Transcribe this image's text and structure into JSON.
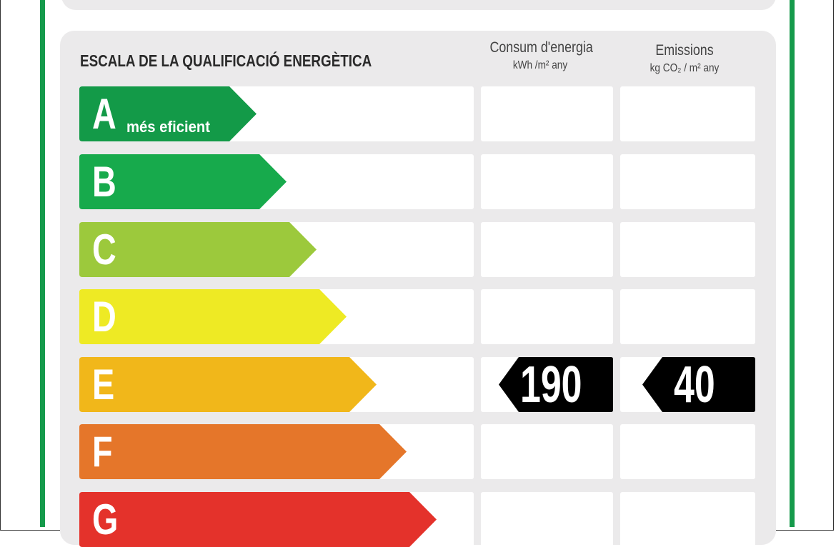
{
  "header": {
    "title": "ESCALA DE LA QUALIFICACIÓ ENERGÈTICA",
    "consumption_label": "Consum d'energia",
    "consumption_unit": "kWh /m² any",
    "emissions_label": "Emissions",
    "emissions_unit": "kg CO₂ / m² any"
  },
  "scale": [
    {
      "letter": "A",
      "subtitle": "més eficient",
      "color": "#139a48"
    },
    {
      "letter": "B",
      "color": "#17aa4c"
    },
    {
      "letter": "C",
      "color": "#9cc93c"
    },
    {
      "letter": "D",
      "color": "#eeea24"
    },
    {
      "letter": "E",
      "color": "#f1b71a"
    },
    {
      "letter": "F",
      "color": "#e5762a"
    },
    {
      "letter": "G",
      "color": "#e4322b"
    }
  ],
  "rating": {
    "class": "E",
    "consumption": "190",
    "emissions": "40",
    "tag_color": "#000000"
  },
  "colors": {
    "border_green": "#159a4b",
    "panel": "#ebeaeb"
  }
}
